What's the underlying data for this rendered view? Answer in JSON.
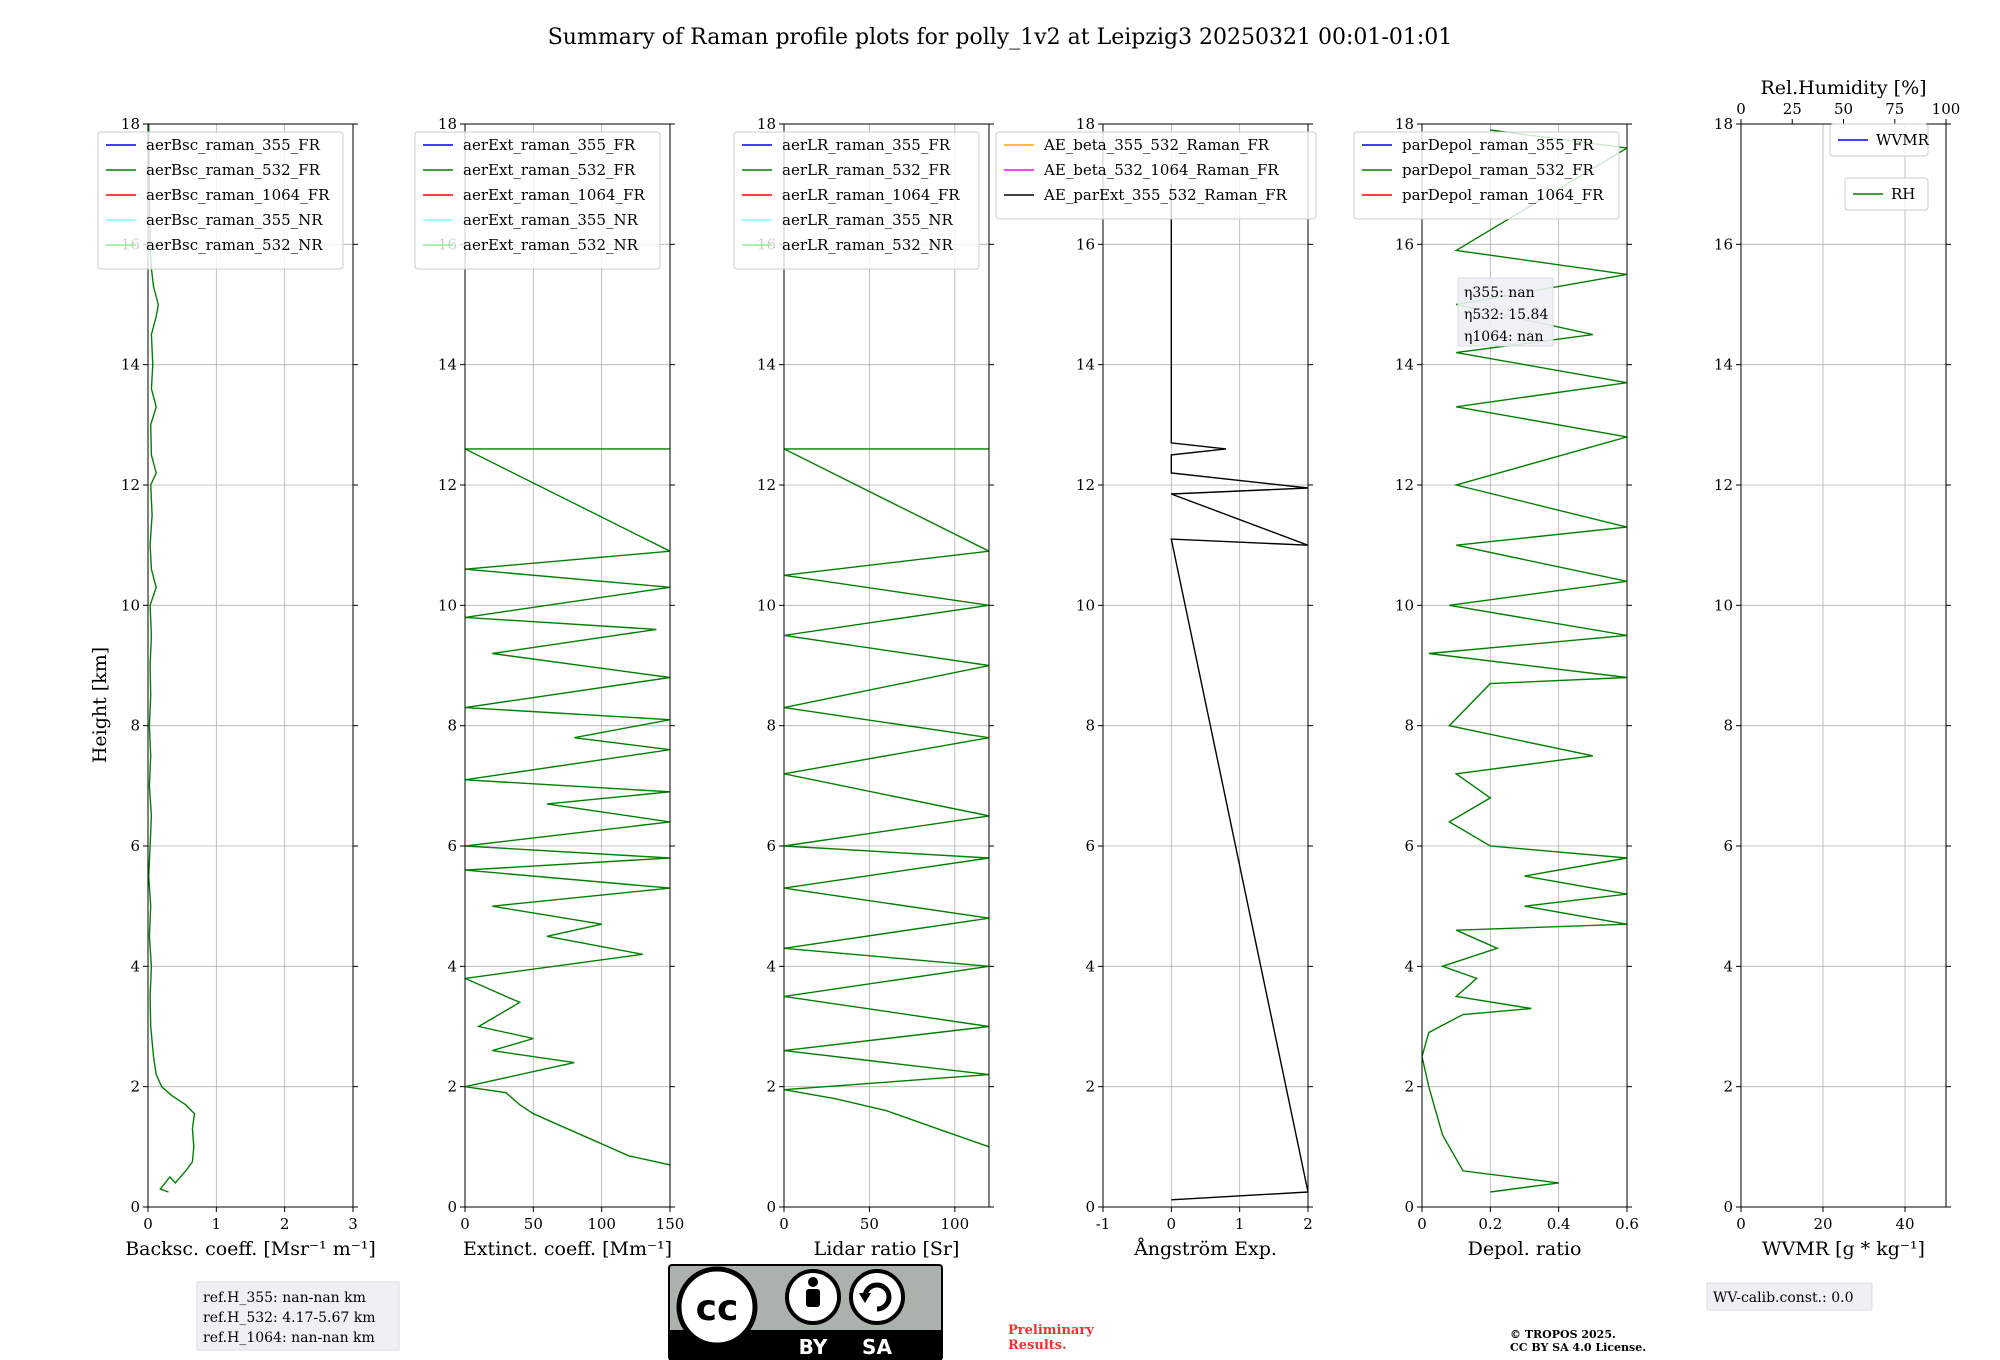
{
  "figure": {
    "title": "Summary of Raman profile plots for polly_1v2 at Leipzig3 20250321 00:01-01:01",
    "ylabel": "Height [km]",
    "ref_box": [
      "ref.H_355: nan-nan km",
      "ref.H_532: 4.17-5.67 km",
      "ref.H_1064: nan-nan km"
    ],
    "license": {
      "cc": "cc",
      "by": "BY",
      "sa": "SA"
    },
    "preliminary": [
      "Preliminary",
      "Results."
    ],
    "copyright": [
      "© TROPOS 2025.",
      "CC BY SA 4.0 License."
    ],
    "wv_calib": "WV-calib.const.: 0.0",
    "eta_box": [
      "η355: nan",
      "η532: 15.84",
      "η1064: nan"
    ],
    "rh_axis_label": "Rel.Humidity [%]",
    "rh_ticks": [
      "0",
      "25",
      "50",
      "75",
      "100"
    ]
  },
  "colors": {
    "blue": "#0000ff",
    "green": "#008000",
    "red": "#ff0000",
    "cyan": "#7fffff",
    "lightgreen": "#90ee90",
    "orange": "#ffa500",
    "magenta": "#ff00ff",
    "black": "#000000",
    "grid": "#b0b0b0"
  },
  "chart_data": [
    {
      "type": "line",
      "xlabel": "Backsc. coeff. [Msr⁻¹ m⁻¹]",
      "ylabel": "Height [km]",
      "xlim": [
        0,
        3
      ],
      "ylim": [
        0,
        18
      ],
      "xticks": [
        0,
        1,
        2,
        3
      ],
      "yticks": [
        0,
        2,
        4,
        6,
        8,
        10,
        12,
        14,
        16,
        18
      ],
      "grid": true,
      "legend": "top-left",
      "legend_entries": [
        {
          "name": "aerBsc_raman_355_FR",
          "color": "blue"
        },
        {
          "name": "aerBsc_raman_532_FR",
          "color": "green"
        },
        {
          "name": "aerBsc_raman_1064_FR",
          "color": "red"
        },
        {
          "name": "aerBsc_raman_355_NR",
          "color": "cyan"
        },
        {
          "name": "aerBsc_raman_532_NR",
          "color": "lightgreen"
        }
      ],
      "series": [
        {
          "name": "aerBsc_raman_532_FR",
          "color": "green",
          "points": [
            [
              0.3,
              0.25
            ],
            [
              0.18,
              0.3
            ],
            [
              0.32,
              0.5
            ],
            [
              0.4,
              0.4
            ],
            [
              0.55,
              0.6
            ],
            [
              0.65,
              0.75
            ],
            [
              0.67,
              1.0
            ],
            [
              0.65,
              1.3
            ],
            [
              0.68,
              1.55
            ],
            [
              0.55,
              1.7
            ],
            [
              0.35,
              1.85
            ],
            [
              0.2,
              2.0
            ],
            [
              0.12,
              2.2
            ],
            [
              0.08,
              2.5
            ],
            [
              0.04,
              3.0
            ],
            [
              0.03,
              3.5
            ],
            [
              0.05,
              4.0
            ],
            [
              0.02,
              4.5
            ],
            [
              0.04,
              5.0
            ],
            [
              0.01,
              5.5
            ],
            [
              0.03,
              6.0
            ],
            [
              0.05,
              6.5
            ],
            [
              0.02,
              7.0
            ],
            [
              0.04,
              7.5
            ],
            [
              0.02,
              8.0
            ],
            [
              0.04,
              8.5
            ],
            [
              0.03,
              9.0
            ],
            [
              0.05,
              9.5
            ],
            [
              0.03,
              10.0
            ],
            [
              0.12,
              10.3
            ],
            [
              0.05,
              10.6
            ],
            [
              0.03,
              11.0
            ],
            [
              0.06,
              11.5
            ],
            [
              0.04,
              12.0
            ],
            [
              0.12,
              12.2
            ],
            [
              0.05,
              12.5
            ],
            [
              0.04,
              13.0
            ],
            [
              0.12,
              13.3
            ],
            [
              0.05,
              13.6
            ],
            [
              0.07,
              14.0
            ],
            [
              0.05,
              14.5
            ],
            [
              0.12,
              14.8
            ],
            [
              0.15,
              15.0
            ],
            [
              0.08,
              15.3
            ],
            [
              0.05,
              15.6
            ],
            [
              0.03,
              16.0
            ],
            [
              0.02,
              17.0
            ],
            [
              0.01,
              18.0
            ]
          ]
        }
      ]
    },
    {
      "type": "line",
      "xlabel": "Extinct. coeff. [Mm⁻¹]",
      "xlim": [
        0,
        150
      ],
      "ylim": [
        0,
        18
      ],
      "xticks": [
        0,
        50,
        100,
        150
      ],
      "yticks": [
        0,
        2,
        4,
        6,
        8,
        10,
        12,
        14,
        16,
        18
      ],
      "grid": true,
      "legend": "top-left",
      "legend_entries": [
        {
          "name": "aerExt_raman_355_FR",
          "color": "blue"
        },
        {
          "name": "aerExt_raman_532_FR",
          "color": "green"
        },
        {
          "name": "aerExt_raman_1064_FR",
          "color": "red"
        },
        {
          "name": "aerExt_raman_355_NR",
          "color": "cyan"
        },
        {
          "name": "aerExt_raman_532_NR",
          "color": "lightgreen"
        }
      ],
      "series": [
        {
          "name": "aerExt_raman_532_FR",
          "color": "green",
          "points": [
            [
              150,
              0.7
            ],
            [
              120,
              0.85
            ],
            [
              95,
              1.1
            ],
            [
              70,
              1.35
            ],
            [
              50,
              1.55
            ],
            [
              40,
              1.7
            ],
            [
              30,
              1.9
            ],
            [
              0,
              2.0
            ],
            [
              80,
              2.4
            ],
            [
              20,
              2.6
            ],
            [
              50,
              2.8
            ],
            [
              10,
              3.0
            ],
            [
              40,
              3.4
            ],
            [
              20,
              3.6
            ],
            [
              0,
              3.8
            ],
            [
              130,
              4.2
            ],
            [
              60,
              4.5
            ],
            [
              100,
              4.7
            ],
            [
              20,
              5.0
            ],
            [
              150,
              5.3
            ],
            [
              0,
              5.6
            ],
            [
              150,
              5.8
            ],
            [
              0,
              6.0
            ],
            [
              150,
              6.4
            ],
            [
              60,
              6.7
            ],
            [
              150,
              6.9
            ],
            [
              0,
              7.1
            ],
            [
              150,
              7.6
            ],
            [
              80,
              7.8
            ],
            [
              150,
              8.1
            ],
            [
              0,
              8.3
            ],
            [
              150,
              8.8
            ],
            [
              20,
              9.2
            ],
            [
              140,
              9.6
            ],
            [
              0,
              9.8
            ],
            [
              150,
              10.3
            ],
            [
              0,
              10.6
            ],
            [
              150,
              10.9
            ],
            [
              0,
              12.6
            ],
            [
              150,
              12.6
            ]
          ]
        }
      ]
    },
    {
      "type": "line",
      "xlabel": "Lidar ratio [Sr]",
      "xlim": [
        0,
        120
      ],
      "ylim": [
        0,
        18
      ],
      "xticks": [
        0,
        50,
        100
      ],
      "yticks": [
        0,
        2,
        4,
        6,
        8,
        10,
        12,
        14,
        16,
        18
      ],
      "grid": true,
      "legend": "top-left",
      "legend_entries": [
        {
          "name": "aerLR_raman_355_FR",
          "color": "blue"
        },
        {
          "name": "aerLR_raman_532_FR",
          "color": "green"
        },
        {
          "name": "aerLR_raman_1064_FR",
          "color": "red"
        },
        {
          "name": "aerLR_raman_355_NR",
          "color": "cyan"
        },
        {
          "name": "aerLR_raman_532_NR",
          "color": "lightgreen"
        }
      ],
      "series": [
        {
          "name": "aerLR_raman_532_FR",
          "color": "green",
          "points": [
            [
              120,
              1.0
            ],
            [
              100,
              1.2
            ],
            [
              80,
              1.4
            ],
            [
              60,
              1.6
            ],
            [
              30,
              1.8
            ],
            [
              0,
              1.95
            ],
            [
              120,
              2.2
            ],
            [
              0,
              2.6
            ],
            [
              120,
              3.0
            ],
            [
              0,
              3.5
            ],
            [
              120,
              4.0
            ],
            [
              0,
              4.3
            ],
            [
              120,
              4.8
            ],
            [
              0,
              5.3
            ],
            [
              120,
              5.8
            ],
            [
              0,
              6.0
            ],
            [
              120,
              6.5
            ],
            [
              0,
              7.2
            ],
            [
              120,
              7.8
            ],
            [
              0,
              8.3
            ],
            [
              120,
              9.0
            ],
            [
              0,
              9.5
            ],
            [
              120,
              10.0
            ],
            [
              0,
              10.5
            ],
            [
              120,
              10.9
            ],
            [
              0,
              12.6
            ],
            [
              120,
              12.6
            ]
          ]
        }
      ]
    },
    {
      "type": "line",
      "xlabel": "Ångström Exp.",
      "xlim": [
        -1,
        2
      ],
      "ylim": [
        0,
        18
      ],
      "xticks": [
        -1,
        0,
        1,
        2
      ],
      "yticks": [
        0,
        2,
        4,
        6,
        8,
        10,
        12,
        14,
        16,
        18
      ],
      "grid": true,
      "legend": "top-left",
      "legend_entries": [
        {
          "name": "AE_beta_355_532_Raman_FR",
          "color": "orange"
        },
        {
          "name": "AE_beta_532_1064_Raman_FR",
          "color": "magenta"
        },
        {
          "name": "AE_parExt_355_532_Raman_FR",
          "color": "black"
        }
      ],
      "series": [
        {
          "name": "AE_parExt_355_532_Raman_FR",
          "color": "black",
          "points": [
            [
              0,
              0.12
            ],
            [
              2,
              0.25
            ],
            [
              0,
              11.1
            ],
            [
              2,
              11.0
            ],
            [
              0,
              11.85
            ],
            [
              2,
              11.95
            ],
            [
              0,
              12.2
            ],
            [
              0,
              12.5
            ],
            [
              0.8,
              12.6
            ],
            [
              0,
              12.7
            ],
            [
              0,
              17.0
            ]
          ]
        }
      ]
    },
    {
      "type": "line",
      "xlabel": "Depol. ratio",
      "xlim": [
        0,
        0.6
      ],
      "ylim": [
        0,
        18
      ],
      "xticks": [
        0.0,
        0.2,
        0.4,
        0.6
      ],
      "yticks": [
        0,
        2,
        4,
        6,
        8,
        10,
        12,
        14,
        16,
        18
      ],
      "grid": true,
      "legend": "top-left",
      "legend_entries": [
        {
          "name": "parDepol_raman_355_FR",
          "color": "blue"
        },
        {
          "name": "parDepol_raman_532_FR",
          "color": "green"
        },
        {
          "name": "parDepol_raman_1064_FR",
          "color": "red"
        }
      ],
      "series": [
        {
          "name": "parDepol_raman_532_FR",
          "color": "green",
          "points": [
            [
              0.2,
              0.25
            ],
            [
              0.4,
              0.4
            ],
            [
              0.12,
              0.6
            ],
            [
              0.06,
              1.2
            ],
            [
              0.02,
              2.0
            ],
            [
              0.0,
              2.5
            ],
            [
              0.02,
              2.9
            ],
            [
              0.12,
              3.2
            ],
            [
              0.32,
              3.3
            ],
            [
              0.1,
              3.5
            ],
            [
              0.16,
              3.8
            ],
            [
              0.06,
              4.0
            ],
            [
              0.22,
              4.3
            ],
            [
              0.1,
              4.6
            ],
            [
              0.6,
              4.7
            ],
            [
              0.3,
              5.0
            ],
            [
              0.6,
              5.2
            ],
            [
              0.3,
              5.5
            ],
            [
              0.6,
              5.8
            ],
            [
              0.2,
              6.0
            ],
            [
              0.08,
              6.4
            ],
            [
              0.2,
              6.8
            ],
            [
              0.1,
              7.2
            ],
            [
              0.5,
              7.5
            ],
            [
              0.08,
              8.0
            ],
            [
              0.2,
              8.7
            ],
            [
              0.6,
              8.8
            ],
            [
              0.02,
              9.2
            ],
            [
              0.6,
              9.5
            ],
            [
              0.08,
              10.0
            ],
            [
              0.6,
              10.4
            ],
            [
              0.1,
              11.0
            ],
            [
              0.6,
              11.3
            ],
            [
              0.1,
              12.0
            ],
            [
              0.6,
              12.8
            ],
            [
              0.1,
              13.3
            ],
            [
              0.6,
              13.7
            ],
            [
              0.1,
              14.2
            ],
            [
              0.5,
              14.5
            ],
            [
              0.1,
              15.0
            ],
            [
              0.6,
              15.5
            ],
            [
              0.1,
              15.9
            ],
            [
              0.6,
              17.6
            ],
            [
              0.2,
              17.9
            ]
          ]
        }
      ]
    },
    {
      "type": "line",
      "xlabel": "WVMR [g * kg⁻¹]",
      "xlim": [
        0,
        50
      ],
      "ylim": [
        0,
        18
      ],
      "xticks": [
        0,
        20,
        40
      ],
      "yticks": [
        0,
        2,
        4,
        6,
        8,
        10,
        12,
        14,
        16,
        18
      ],
      "x2label": "Rel.Humidity [%]",
      "x2lim": [
        0,
        100
      ],
      "x2ticks": [
        0,
        25,
        50,
        75,
        100
      ],
      "grid": true,
      "legend": "top-right",
      "legend_entries": [
        {
          "name": "WVMR",
          "color": "blue"
        },
        {
          "name": "RH",
          "color": "green"
        }
      ],
      "series": []
    }
  ]
}
